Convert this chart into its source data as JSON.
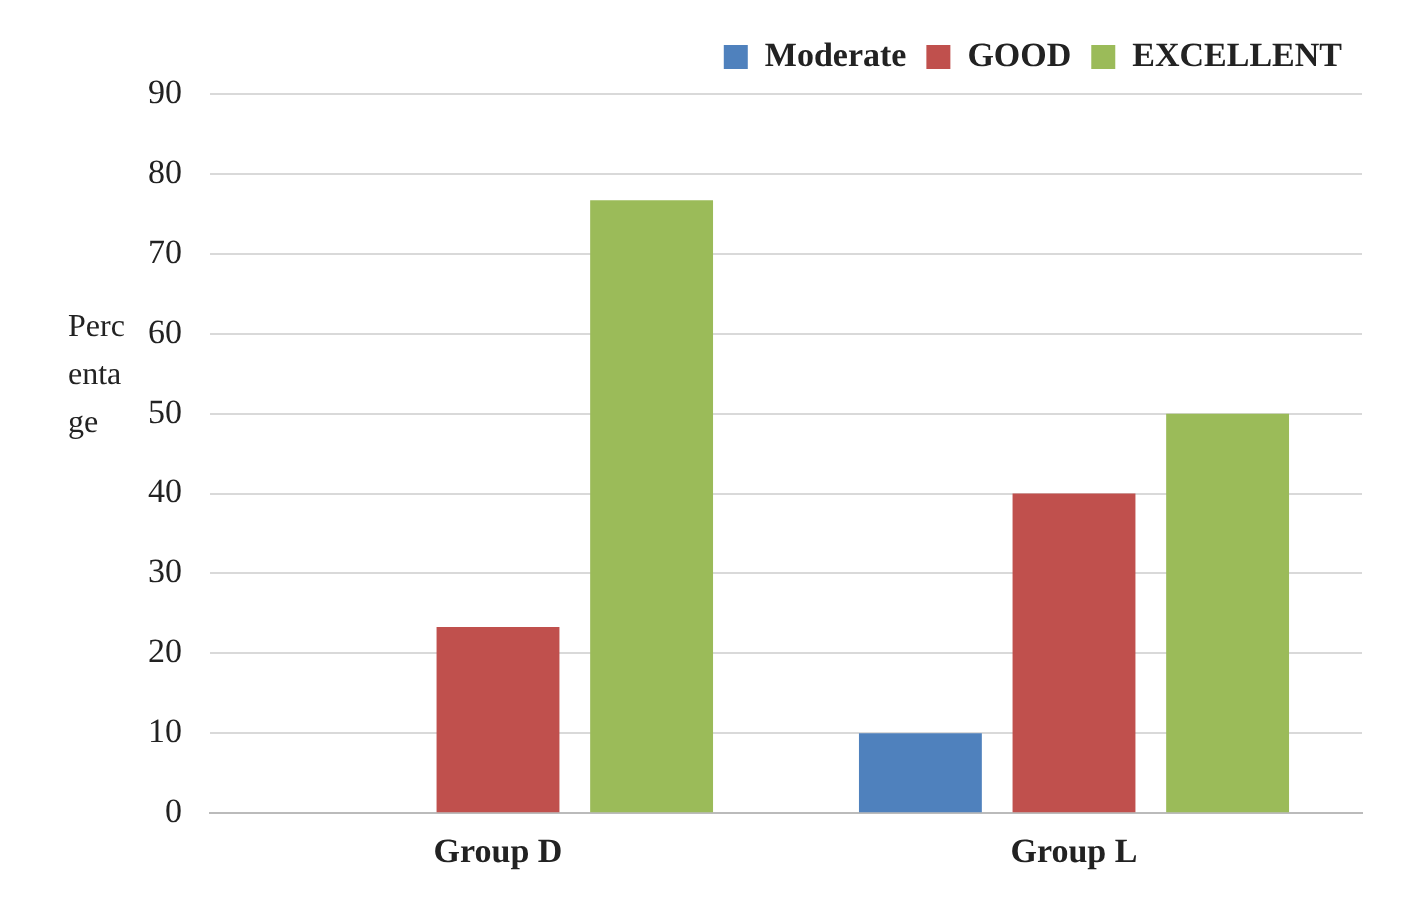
{
  "chart_data": {
    "type": "bar",
    "ylabel": "Percentage",
    "categories": [
      "Group D",
      "Group L"
    ],
    "series": [
      {
        "name": "Moderate",
        "color": "#4f81bd",
        "values": [
          0,
          10
        ]
      },
      {
        "name": "GOOD",
        "color": "#c0504d",
        "values": [
          23.3,
          40
        ]
      },
      {
        "name": "EXCELLENT",
        "color": "#9bbb59",
        "values": [
          76.7,
          50
        ]
      }
    ],
    "ylim": [
      0,
      90
    ],
    "yticks": [
      0,
      10,
      20,
      30,
      40,
      50,
      60,
      70,
      80,
      90
    ],
    "grid": "y",
    "legend": "top"
  }
}
